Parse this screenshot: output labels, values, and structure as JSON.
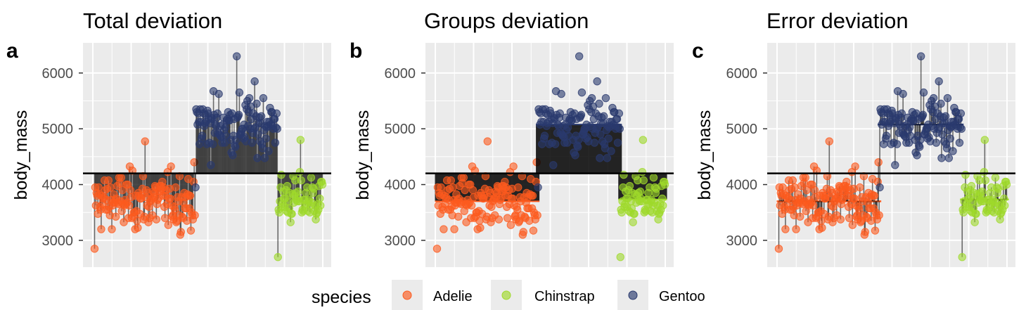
{
  "colors": {
    "Adelie": "#fc5a1e",
    "Chinstrap": "#9fd92b",
    "Gentoo": "#2a3a6e",
    "panel_bg": "#ebebeb",
    "grid": "#ffffff",
    "mean_line": "#000000"
  },
  "chart_data": [
    {
      "tag": "a",
      "title": "Total deviation",
      "type": "scatter",
      "ylabel": "body_mass",
      "ylim": [
        2520,
        6540
      ],
      "yticks": [
        3000,
        4000,
        5000,
        6000
      ],
      "grand_mean": 4200,
      "show": "total"
    },
    {
      "tag": "b",
      "title": "Groups deviation",
      "type": "scatter",
      "ylabel": "body_mass",
      "ylim": [
        2520,
        6540
      ],
      "yticks": [
        3000,
        4000,
        5000,
        6000
      ],
      "grand_mean": 4200,
      "show": "groups"
    },
    {
      "tag": "c",
      "title": "Error deviation",
      "type": "scatter",
      "ylabel": "body_mass",
      "ylim": [
        2520,
        6540
      ],
      "yticks": [
        3000,
        4000,
        5000,
        6000
      ],
      "grand_mean": 4200,
      "show": "error"
    }
  ],
  "species": [
    {
      "name": "Adelie",
      "n": 152,
      "mean": 3700,
      "min": 2850,
      "max": 4775
    },
    {
      "name": "Gentoo",
      "n": 124,
      "mean": 5076,
      "min": 3950,
      "max": 6300
    },
    {
      "name": "Chinstrap",
      "n": 68,
      "mean": 3733,
      "min": 2700,
      "max": 4800
    }
  ],
  "legend": {
    "title": "species",
    "items": [
      "Adelie",
      "Chinstrap",
      "Gentoo"
    ]
  }
}
